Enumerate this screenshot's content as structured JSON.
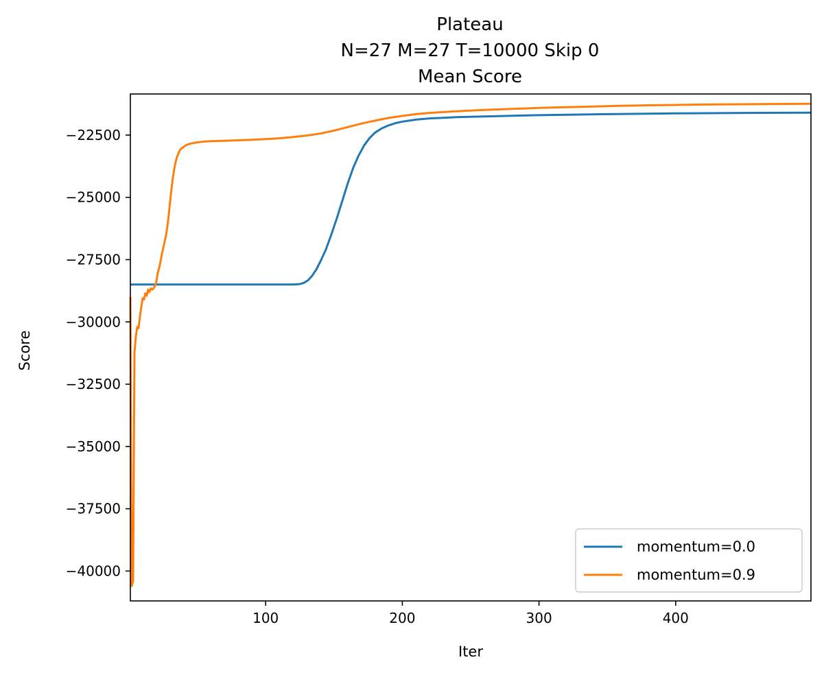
{
  "chart_data": {
    "type": "line",
    "title_lines": [
      "Plateau",
      "N=27 M=27 T=10000 Skip 0",
      "Mean Score"
    ],
    "xlabel": "Iter",
    "ylabel": "Score",
    "xlim": [
      1,
      499
    ],
    "ylim": [
      -41200,
      -20850
    ],
    "xticks": [
      100,
      200,
      300,
      400
    ],
    "yticks": [
      -40000,
      -37500,
      -35000,
      -32500,
      -30000,
      -27500,
      -25000,
      -22500
    ],
    "legend_position": "lower right",
    "series": [
      {
        "name": "momentum=0.0",
        "color": "#1f77b4",
        "points": [
          [
            1,
            -28500
          ],
          [
            120,
            -28500
          ],
          [
            125,
            -28480
          ],
          [
            128,
            -28430
          ],
          [
            131,
            -28330
          ],
          [
            134,
            -28150
          ],
          [
            137,
            -27900
          ],
          [
            140,
            -27580
          ],
          [
            144,
            -27100
          ],
          [
            148,
            -26500
          ],
          [
            152,
            -25850
          ],
          [
            156,
            -25150
          ],
          [
            160,
            -24450
          ],
          [
            164,
            -23820
          ],
          [
            168,
            -23320
          ],
          [
            172,
            -22920
          ],
          [
            176,
            -22620
          ],
          [
            180,
            -22400
          ],
          [
            185,
            -22230
          ],
          [
            190,
            -22110
          ],
          [
            195,
            -22020
          ],
          [
            200,
            -21960
          ],
          [
            210,
            -21880
          ],
          [
            220,
            -21830
          ],
          [
            240,
            -21780
          ],
          [
            260,
            -21750
          ],
          [
            300,
            -21700
          ],
          [
            350,
            -21660
          ],
          [
            400,
            -21630
          ],
          [
            450,
            -21610
          ],
          [
            499,
            -21600
          ]
        ]
      },
      {
        "name": "momentum=0.9",
        "color": "#ff7f0e",
        "points": [
          [
            1,
            -29000
          ],
          [
            2,
            -40600
          ],
          [
            3,
            -40400
          ],
          [
            4,
            -31200
          ],
          [
            5,
            -30600
          ],
          [
            6,
            -30200
          ],
          [
            7,
            -30250
          ],
          [
            8,
            -29800
          ],
          [
            9,
            -29400
          ],
          [
            10,
            -29050
          ],
          [
            11,
            -29100
          ],
          [
            12,
            -28850
          ],
          [
            13,
            -28950
          ],
          [
            14,
            -28700
          ],
          [
            15,
            -28800
          ],
          [
            16,
            -28650
          ],
          [
            17,
            -28700
          ],
          [
            18,
            -28650
          ],
          [
            19,
            -28550
          ],
          [
            20,
            -28400
          ],
          [
            21,
            -28050
          ],
          [
            22,
            -27850
          ],
          [
            23,
            -27600
          ],
          [
            24,
            -27300
          ],
          [
            25,
            -27050
          ],
          [
            26,
            -26800
          ],
          [
            27,
            -26550
          ],
          [
            28,
            -26200
          ],
          [
            29,
            -25750
          ],
          [
            30,
            -25200
          ],
          [
            31,
            -24700
          ],
          [
            32,
            -24250
          ],
          [
            33,
            -23900
          ],
          [
            34,
            -23620
          ],
          [
            35,
            -23400
          ],
          [
            36,
            -23250
          ],
          [
            37,
            -23130
          ],
          [
            38,
            -23050
          ],
          [
            40,
            -22970
          ],
          [
            42,
            -22900
          ],
          [
            45,
            -22840
          ],
          [
            50,
            -22790
          ],
          [
            55,
            -22760
          ],
          [
            60,
            -22745
          ],
          [
            70,
            -22730
          ],
          [
            80,
            -22710
          ],
          [
            90,
            -22690
          ],
          [
            100,
            -22660
          ],
          [
            110,
            -22630
          ],
          [
            120,
            -22580
          ],
          [
            130,
            -22520
          ],
          [
            140,
            -22440
          ],
          [
            150,
            -22320
          ],
          [
            160,
            -22180
          ],
          [
            170,
            -22040
          ],
          [
            180,
            -21920
          ],
          [
            190,
            -21810
          ],
          [
            200,
            -21730
          ],
          [
            210,
            -21660
          ],
          [
            220,
            -21610
          ],
          [
            240,
            -21540
          ],
          [
            260,
            -21490
          ],
          [
            280,
            -21450
          ],
          [
            300,
            -21410
          ],
          [
            320,
            -21380
          ],
          [
            340,
            -21350
          ],
          [
            360,
            -21325
          ],
          [
            380,
            -21305
          ],
          [
            400,
            -21290
          ],
          [
            420,
            -21275
          ],
          [
            440,
            -21265
          ],
          [
            460,
            -21255
          ],
          [
            480,
            -21250
          ],
          [
            499,
            -21245
          ]
        ]
      }
    ]
  }
}
